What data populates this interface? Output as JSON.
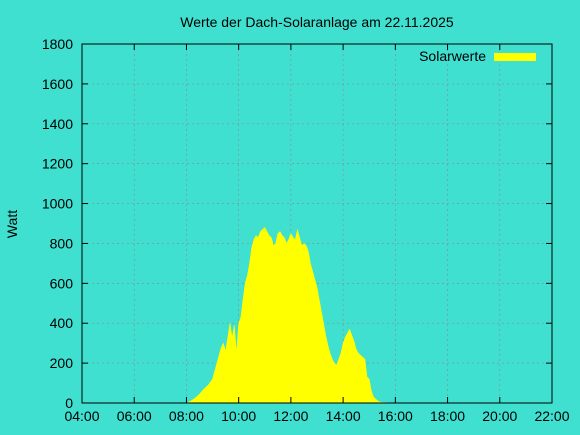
{
  "chart_data": {
    "type": "area",
    "title": "Werte der Dach-Solaranlage am 22.11.2025",
    "xlabel": "",
    "ylabel": "Watt",
    "xlim": [
      "04:00",
      "22:00"
    ],
    "ylim": [
      0,
      1800
    ],
    "grid": true,
    "legend_position": "top-right",
    "x_ticks": [
      "04:00",
      "06:00",
      "08:00",
      "10:00",
      "12:00",
      "14:00",
      "16:00",
      "18:00",
      "20:00",
      "22:00"
    ],
    "y_ticks": [
      0,
      200,
      400,
      600,
      800,
      1000,
      1200,
      1400,
      1600,
      1800
    ],
    "series": [
      {
        "name": "Solarwerte",
        "color": "#ffff00",
        "x": [
          "08:00",
          "08:10",
          "08:20",
          "08:30",
          "08:40",
          "08:50",
          "09:00",
          "09:05",
          "09:10",
          "09:15",
          "09:20",
          "09:25",
          "09:30",
          "09:35",
          "09:40",
          "09:45",
          "09:50",
          "09:55",
          "10:00",
          "10:05",
          "10:10",
          "10:15",
          "10:20",
          "10:25",
          "10:30",
          "10:35",
          "10:40",
          "10:45",
          "10:50",
          "10:55",
          "11:00",
          "11:05",
          "11:10",
          "11:15",
          "11:20",
          "11:25",
          "11:30",
          "11:35",
          "11:40",
          "11:45",
          "11:50",
          "11:55",
          "12:00",
          "12:05",
          "12:10",
          "12:15",
          "12:20",
          "12:25",
          "12:30",
          "12:35",
          "12:40",
          "12:45",
          "12:50",
          "12:55",
          "13:00",
          "13:05",
          "13:10",
          "13:15",
          "13:20",
          "13:25",
          "13:30",
          "13:35",
          "13:40",
          "13:45",
          "13:50",
          "13:55",
          "14:00",
          "14:05",
          "14:10",
          "14:15",
          "14:20",
          "14:25",
          "14:30",
          "14:35",
          "14:40",
          "14:45",
          "14:50",
          "14:55",
          "15:00",
          "15:05",
          "15:10",
          "15:15",
          "15:20",
          "15:25",
          "15:30",
          "15:40",
          "15:50",
          "16:00"
        ],
        "values": [
          0,
          10,
          25,
          45,
          70,
          90,
          120,
          160,
          200,
          240,
          280,
          300,
          260,
          330,
          400,
          330,
          390,
          250,
          400,
          430,
          520,
          600,
          640,
          700,
          780,
          820,
          840,
          830,
          860,
          870,
          880,
          860,
          840,
          830,
          790,
          800,
          850,
          860,
          840,
          830,
          800,
          820,
          850,
          830,
          820,
          870,
          830,
          790,
          800,
          790,
          760,
          700,
          660,
          620,
          580,
          520,
          460,
          400,
          340,
          290,
          250,
          220,
          200,
          190,
          220,
          250,
          300,
          330,
          350,
          370,
          340,
          310,
          270,
          250,
          240,
          230,
          220,
          130,
          120,
          60,
          30,
          20,
          10,
          5,
          3,
          2,
          1,
          0
        ]
      }
    ]
  }
}
